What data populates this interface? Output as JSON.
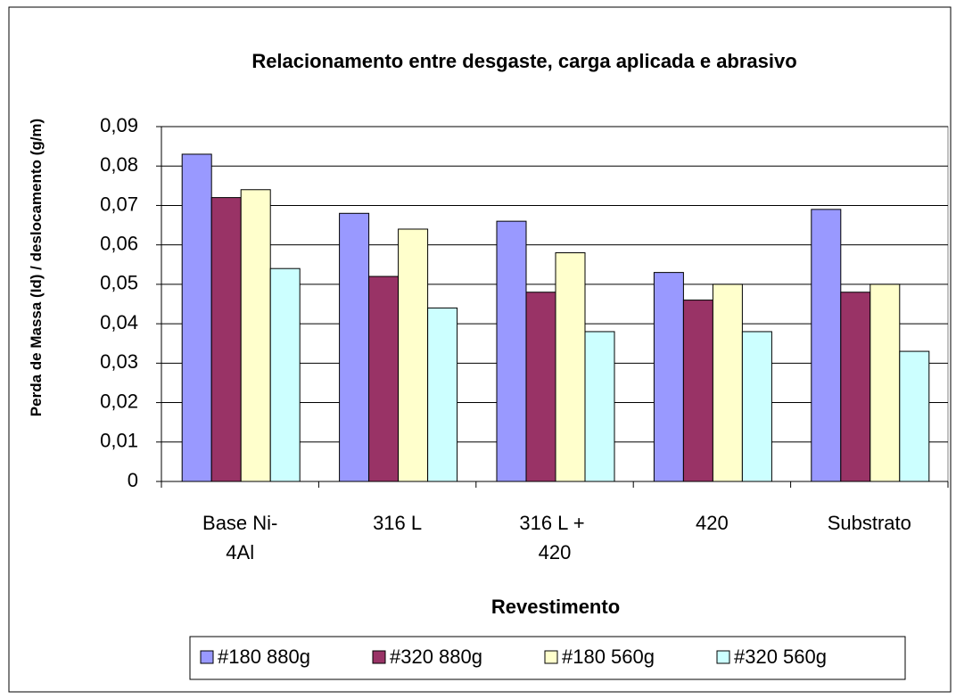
{
  "chart_data": {
    "type": "bar",
    "title": "Relacionamento entre desgaste, carga aplicada e abrasivo",
    "xlabel": "Revestimento",
    "ylabel": "Perda de Massa (Id) / deslocamento (g/m)",
    "categories": [
      "Base Ni-4Al",
      "316 L",
      "316 L + 420",
      "420",
      "Substrato"
    ],
    "series": [
      {
        "name": "#180 880g",
        "color": "#9999ff",
        "values": [
          0.083,
          0.068,
          0.066,
          0.053,
          0.069
        ]
      },
      {
        "name": "#320 880g",
        "color": "#993366",
        "values": [
          0.072,
          0.052,
          0.048,
          0.046,
          0.048
        ]
      },
      {
        "name": "#180 560g",
        "color": "#ffffcc",
        "values": [
          0.074,
          0.064,
          0.058,
          0.05,
          0.05
        ]
      },
      {
        "name": "#320 560g",
        "color": "#ccffff",
        "values": [
          0.054,
          0.044,
          0.038,
          0.038,
          0.033
        ]
      }
    ],
    "ylim": [
      0,
      0.09
    ],
    "yticks": [
      0,
      {
        "value": 0.01,
        "label": "0,01"
      },
      {
        "value": 0.02,
        "label": "0,02"
      },
      {
        "value": 0.03,
        "label": "0,03"
      },
      {
        "value": 0.04,
        "label": "0,04"
      },
      {
        "value": 0.05,
        "label": "0,05"
      },
      {
        "value": 0.06,
        "label": "0,06"
      },
      {
        "value": 0.07,
        "label": "0,07"
      },
      {
        "value": 0.08,
        "label": "0,08"
      },
      {
        "value": 0.09,
        "label": "0,09"
      }
    ],
    "grid": true,
    "legend": "bottom"
  }
}
